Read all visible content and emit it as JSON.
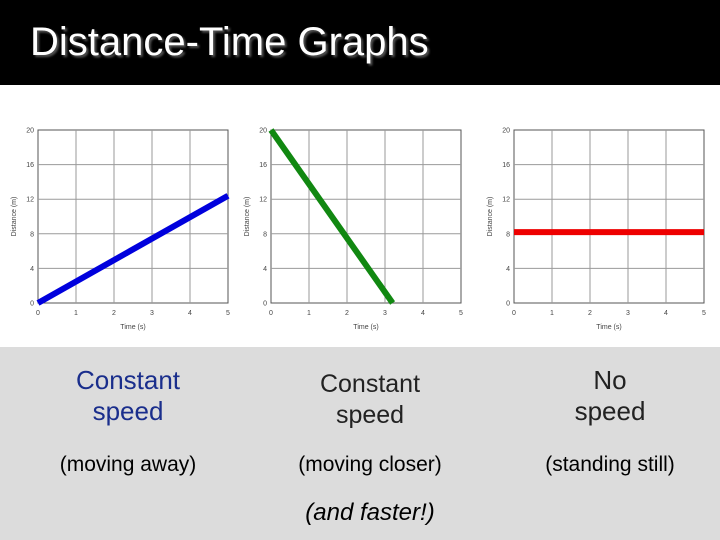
{
  "slide": {
    "title": "Distance-Time Graphs"
  },
  "chart_data": [
    {
      "type": "line",
      "xlabel": "Time (s)",
      "ylabel": "Distance (m)",
      "xlim": [
        0,
        5
      ],
      "ylim": [
        0,
        20
      ],
      "x_ticks": [
        "0",
        "1",
        "2",
        "3",
        "4",
        "5"
      ],
      "y_ticks": [
        "0",
        "4",
        "8",
        "12",
        "16",
        "20"
      ],
      "grid": true,
      "series": [
        {
          "x": [
            0,
            5
          ],
          "y": [
            0,
            12.4
          ],
          "color": "#0000dd"
        }
      ]
    },
    {
      "type": "line",
      "xlabel": "Time (s)",
      "ylabel": "Distance (m)",
      "xlim": [
        0,
        5
      ],
      "ylim": [
        0,
        20
      ],
      "x_ticks": [
        "0",
        "1",
        "2",
        "3",
        "4",
        "5"
      ],
      "y_ticks": [
        "0",
        "4",
        "8",
        "12",
        "16",
        "20"
      ],
      "grid": true,
      "series": [
        {
          "x": [
            0,
            3.2
          ],
          "y": [
            20,
            0
          ],
          "color": "#118811"
        }
      ]
    },
    {
      "type": "line",
      "xlabel": "Time (s)",
      "ylabel": "Distance (m)",
      "xlim": [
        0,
        5
      ],
      "ylim": [
        0,
        20
      ],
      "x_ticks": [
        "0",
        "1",
        "2",
        "3",
        "4",
        "5"
      ],
      "y_ticks": [
        "0",
        "4",
        "8",
        "12",
        "16",
        "20"
      ],
      "grid": true,
      "series": [
        {
          "x": [
            0,
            5
          ],
          "y": [
            8.2,
            8.2
          ],
          "color": "#ee0000"
        }
      ]
    }
  ],
  "captions": [
    {
      "title_line1": "Constant",
      "title_line2": "speed",
      "subtitle": "(moving away)"
    },
    {
      "title_line1": "Constant",
      "title_line2": "speed",
      "subtitle": "(moving closer)",
      "extra": "(and faster!)"
    },
    {
      "title_line1": "No",
      "title_line2": "speed",
      "subtitle": "(standing still)"
    }
  ]
}
